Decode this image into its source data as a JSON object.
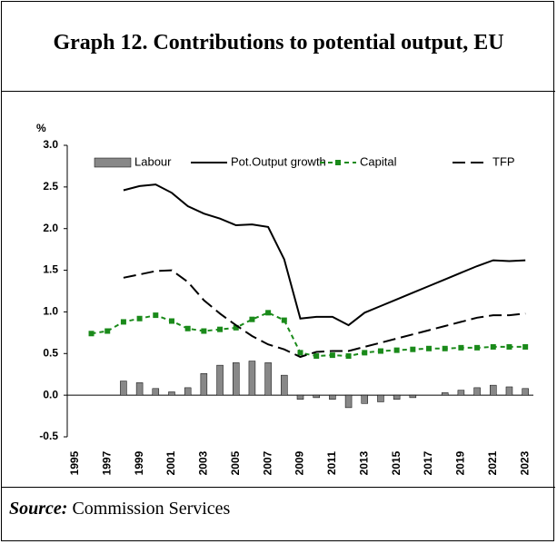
{
  "chart_data": {
    "type": "bar",
    "title": "Graph 12. Contributions to potential output, EU",
    "y_unit": "%",
    "source_label": "Source:",
    "source_text": "Commission Services",
    "categories": [
      "1995",
      null,
      "1997",
      null,
      "1999",
      null,
      "2001",
      null,
      "2003",
      null,
      "2005",
      null,
      "2007",
      null,
      "2009",
      null,
      "2011",
      null,
      "2013",
      null,
      "2015",
      null,
      "2017",
      null,
      "2019",
      null,
      "2021",
      null,
      "2023"
    ],
    "series": [
      {
        "name": "Labour",
        "type": "bar",
        "color": "#888888",
        "values": [
          null,
          null,
          null,
          0.17,
          0.15,
          0.08,
          0.04,
          0.09,
          0.26,
          0.36,
          0.39,
          0.41,
          0.39,
          0.24,
          -0.05,
          -0.03,
          -0.05,
          -0.15,
          -0.1,
          -0.08,
          -0.05,
          -0.03,
          0.0,
          0.03,
          0.06,
          0.09,
          0.12,
          0.1,
          0.08
        ]
      },
      {
        "name": "Pot.Output growth",
        "type": "line",
        "color": "#000000",
        "dash": "solid",
        "values": [
          null,
          null,
          null,
          2.46,
          2.51,
          2.53,
          2.43,
          2.27,
          2.18,
          2.12,
          2.04,
          2.05,
          2.02,
          1.63,
          0.92,
          0.94,
          0.94,
          0.84,
          0.99,
          1.07,
          1.15,
          1.23,
          1.31,
          1.39,
          1.47,
          1.55,
          1.62,
          1.61,
          1.62
        ]
      },
      {
        "name": "Capital",
        "type": "line",
        "color": "#1a8a1a",
        "dash": "short",
        "marker": "square",
        "values": [
          null,
          0.74,
          0.77,
          0.88,
          0.92,
          0.96,
          0.89,
          0.8,
          0.77,
          0.79,
          0.81,
          0.91,
          0.99,
          0.9,
          0.51,
          0.47,
          0.48,
          0.47,
          0.51,
          0.53,
          0.54,
          0.55,
          0.56,
          0.56,
          0.57,
          0.57,
          0.58,
          0.58,
          0.58
        ]
      },
      {
        "name": "TFP",
        "type": "line",
        "color": "#000000",
        "dash": "long",
        "values": [
          null,
          null,
          null,
          1.41,
          1.45,
          1.49,
          1.5,
          1.36,
          1.14,
          0.98,
          0.84,
          0.71,
          0.61,
          0.55,
          0.46,
          0.52,
          0.53,
          0.53,
          0.58,
          0.63,
          0.68,
          0.73,
          0.78,
          0.83,
          0.88,
          0.93,
          0.96,
          0.96,
          0.98
        ]
      }
    ],
    "ylim": [
      -0.5,
      3.0
    ],
    "yticks": [
      {
        "value": -0.5,
        "label": "-0.5"
      },
      {
        "value": 0,
        "label": "0.0"
      },
      0.5,
      {
        "value": 1,
        "label": "1.0"
      },
      1.5,
      {
        "value": 2,
        "label": "2.0"
      },
      2.5,
      {
        "value": 3,
        "label": "3.0"
      }
    ],
    "legend": "top"
  }
}
